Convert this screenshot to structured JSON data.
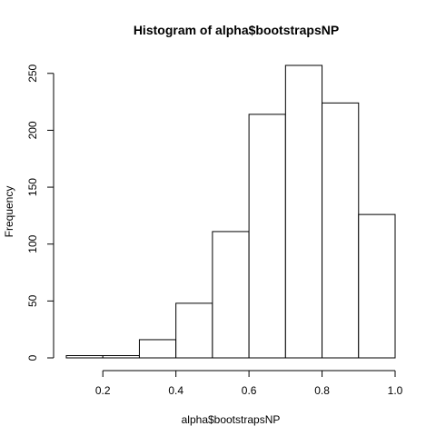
{
  "chart_data": {
    "type": "bar",
    "title": "Histogram of alpha$bootstrapsNP",
    "xlabel": "alpha$bootstrapsNP",
    "ylabel": "Frequency",
    "bins": [
      {
        "start": 0.1,
        "end": 0.2,
        "count": 2
      },
      {
        "start": 0.2,
        "end": 0.3,
        "count": 2
      },
      {
        "start": 0.3,
        "end": 0.4,
        "count": 16
      },
      {
        "start": 0.4,
        "end": 0.5,
        "count": 48
      },
      {
        "start": 0.5,
        "end": 0.6,
        "count": 111
      },
      {
        "start": 0.6,
        "end": 0.7,
        "count": 214
      },
      {
        "start": 0.7,
        "end": 0.8,
        "count": 257
      },
      {
        "start": 0.8,
        "end": 0.9,
        "count": 224
      },
      {
        "start": 0.9,
        "end": 1.0,
        "count": 126
      }
    ],
    "xlim": [
      0.1,
      1.0
    ],
    "ylim": [
      0,
      257
    ],
    "xticks": [
      0.2,
      0.4,
      0.6,
      0.8,
      1.0
    ],
    "xtick_labels": [
      "0.2",
      "0.4",
      "0.6",
      "0.8",
      "1.0"
    ],
    "yticks": [
      0,
      50,
      100,
      150,
      200,
      250
    ],
    "ytick_labels": [
      "0",
      "50",
      "100",
      "150",
      "200",
      "250"
    ],
    "grid": false,
    "legend": "none",
    "bar_fill": "#ffffff",
    "bar_stroke": "#000000"
  }
}
